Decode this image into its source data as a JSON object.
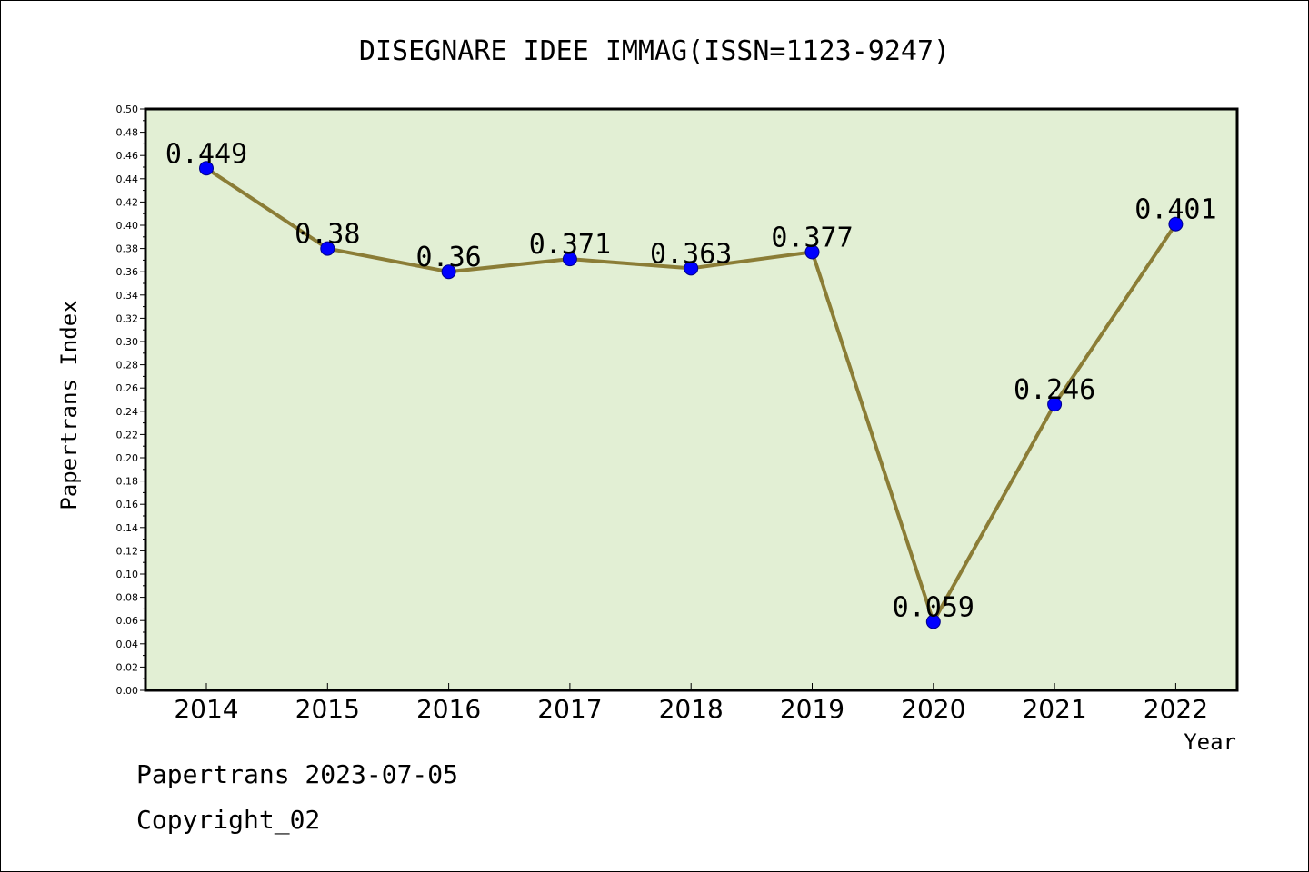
{
  "chart_data": {
    "type": "line",
    "title": "DISEGNARE IDEE IMMAG(ISSN=1123-9247)",
    "xlabel": "Year",
    "ylabel": "Papertrans Index",
    "categories": [
      "2014",
      "2015",
      "2016",
      "2017",
      "2018",
      "2019",
      "2020",
      "2021",
      "2022"
    ],
    "series": [
      {
        "values": [
          0.449,
          0.38,
          0.36,
          0.371,
          0.363,
          0.377,
          0.059,
          0.246,
          0.401
        ],
        "data_labels": [
          "0.449",
          "0.38",
          "0.36",
          "0.371",
          "0.363",
          "0.377",
          "0.059",
          "0.246",
          "0.401"
        ]
      }
    ],
    "ylim": [
      0,
      0.5
    ],
    "yticks": [
      "0.00",
      "0.02",
      "0.04",
      "0.06",
      "0.08",
      "0.10",
      "0.12",
      "0.14",
      "0.16",
      "0.18",
      "0.20",
      "0.22",
      "0.24",
      "0.26",
      "0.28",
      "0.30",
      "0.32",
      "0.34",
      "0.36",
      "0.38",
      "0.40",
      "0.42",
      "0.44",
      "0.46",
      "0.48",
      "0.50"
    ],
    "grid": false,
    "legend": "none",
    "colors": {
      "plot_background": "#e2efd4",
      "line": "#8b7d36",
      "marker": "#0000ff",
      "axis": "#000000"
    }
  },
  "footer": {
    "line1": "Papertrans 2023-07-05",
    "line2": "Copyright_02"
  }
}
